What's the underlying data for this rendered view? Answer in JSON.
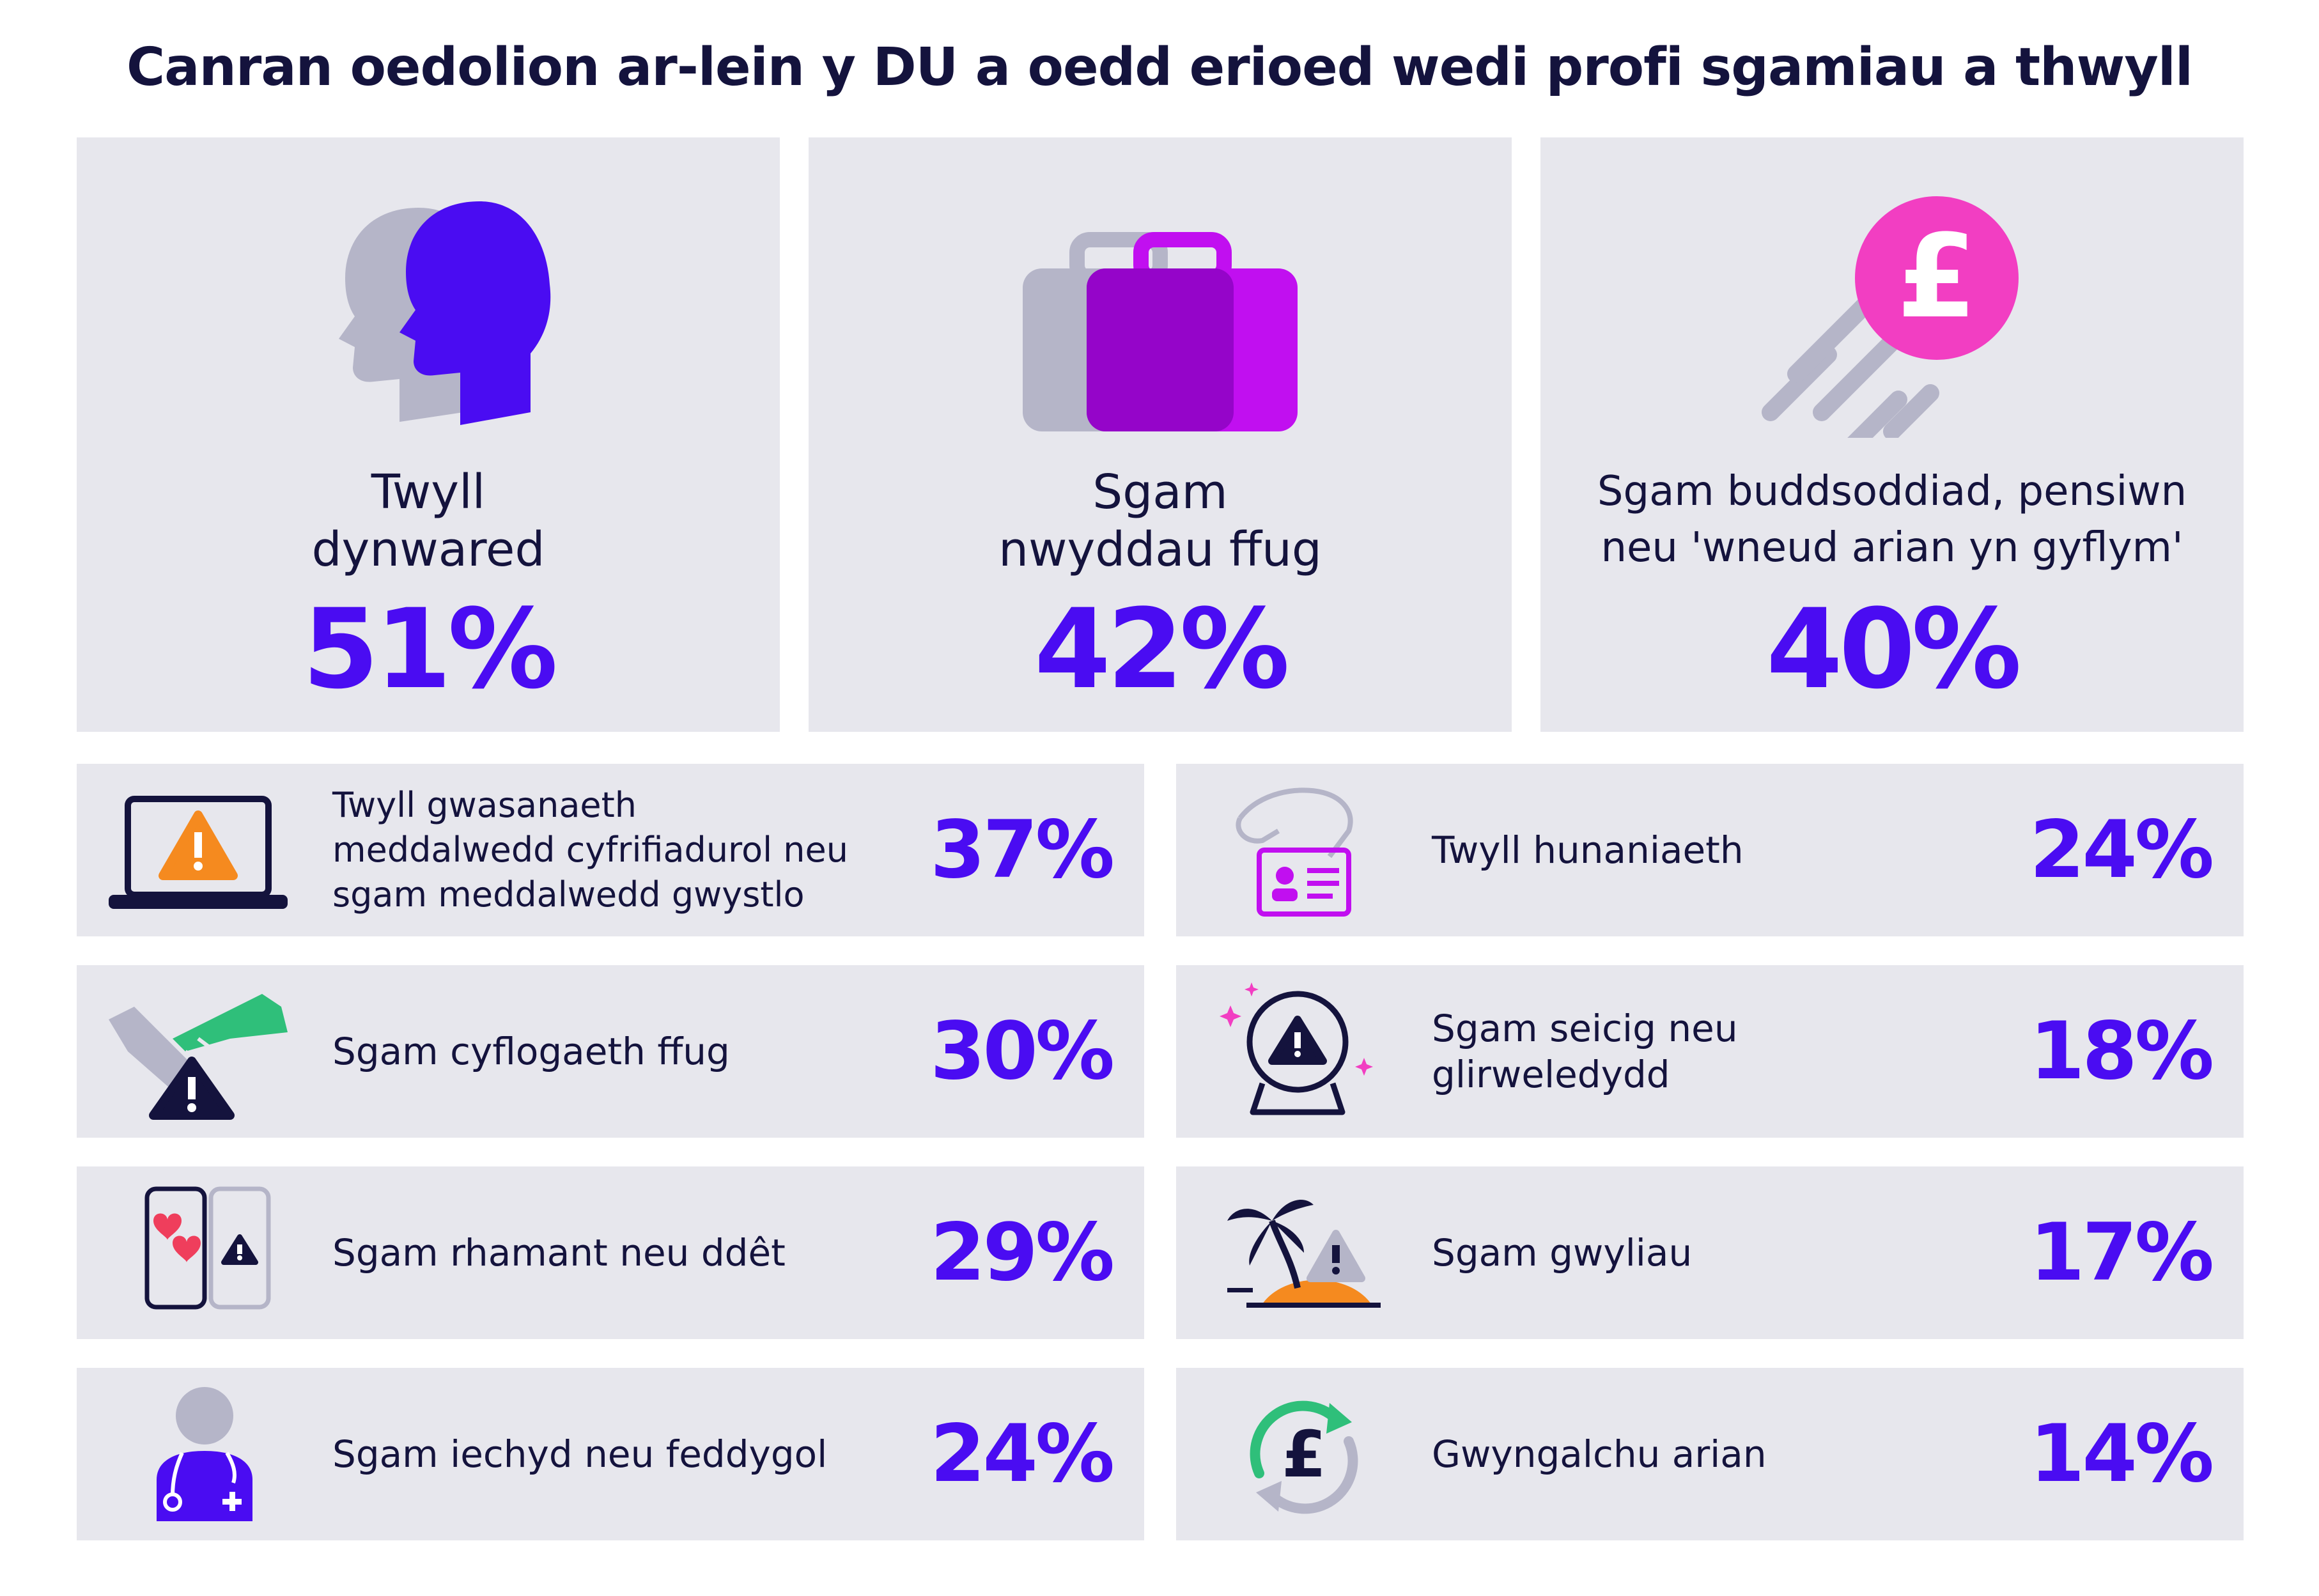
{
  "chart_data": {
    "type": "table",
    "title": "Canran oedolion ar-lein y DU a oedd erioed wedi profi sgamiau a thwyll",
    "categories": [
      "Twyll\ndynwared",
      "Sgam\nnwyddau ffug",
      "Sgam buddsoddiad, pensiwn\nneu 'wneud arian yn gyflym'",
      "Twyll gwasanaeth\nmeddalwedd cyfrifiadurol neu\nsgam meddalwedd gwystlo",
      "Twyll hunaniaeth",
      "Sgam cyflogaeth ffug",
      "Sgam seicig neu\nglirweledydd",
      "Sgam rhamant neu ddêt",
      "Sgam gwyliau",
      "Sgam iechyd neu feddygol",
      "Gwyngalchu arian"
    ],
    "values": [
      51,
      42,
      40,
      37,
      24,
      30,
      18,
      29,
      17,
      24,
      14
    ],
    "value_labels": [
      "51%",
      "42%",
      "40%",
      "37%",
      "24%",
      "30%",
      "18%",
      "29%",
      "17%",
      "24%",
      "14%"
    ],
    "unit": "%"
  },
  "icons": [
    "heads-icon",
    "suitcase-icon",
    "pound-coin-icon",
    "laptop-warning-icon",
    "id-card-hand-icon",
    "handshake-warning-icon",
    "crystal-ball-warning-icon",
    "phones-hearts-icon",
    "island-warning-icon",
    "doctor-icon",
    "pound-cycle-icon"
  ],
  "colors": {
    "accent": "#4a0cf2",
    "text": "#14133d",
    "card": "#e7e7ed",
    "magenta": "#c10ff0",
    "pink": "#f23ec2",
    "green": "#2fbf7a",
    "grey": "#b5b5c8"
  }
}
